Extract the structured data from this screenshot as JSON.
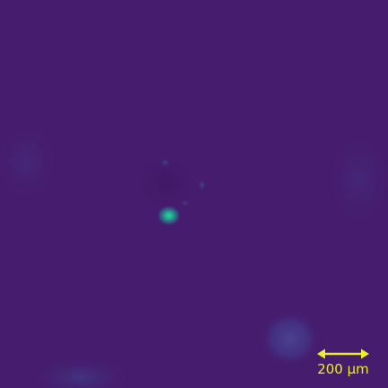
{
  "image": {
    "colormap": "viridis",
    "colors": {
      "background": "#461c6e",
      "bright_spot": "#28c49a",
      "faint_ring": "#3b3f8e",
      "scale_bar": "#e8ee2a"
    }
  },
  "scale_bar": {
    "label": "200 µm"
  }
}
